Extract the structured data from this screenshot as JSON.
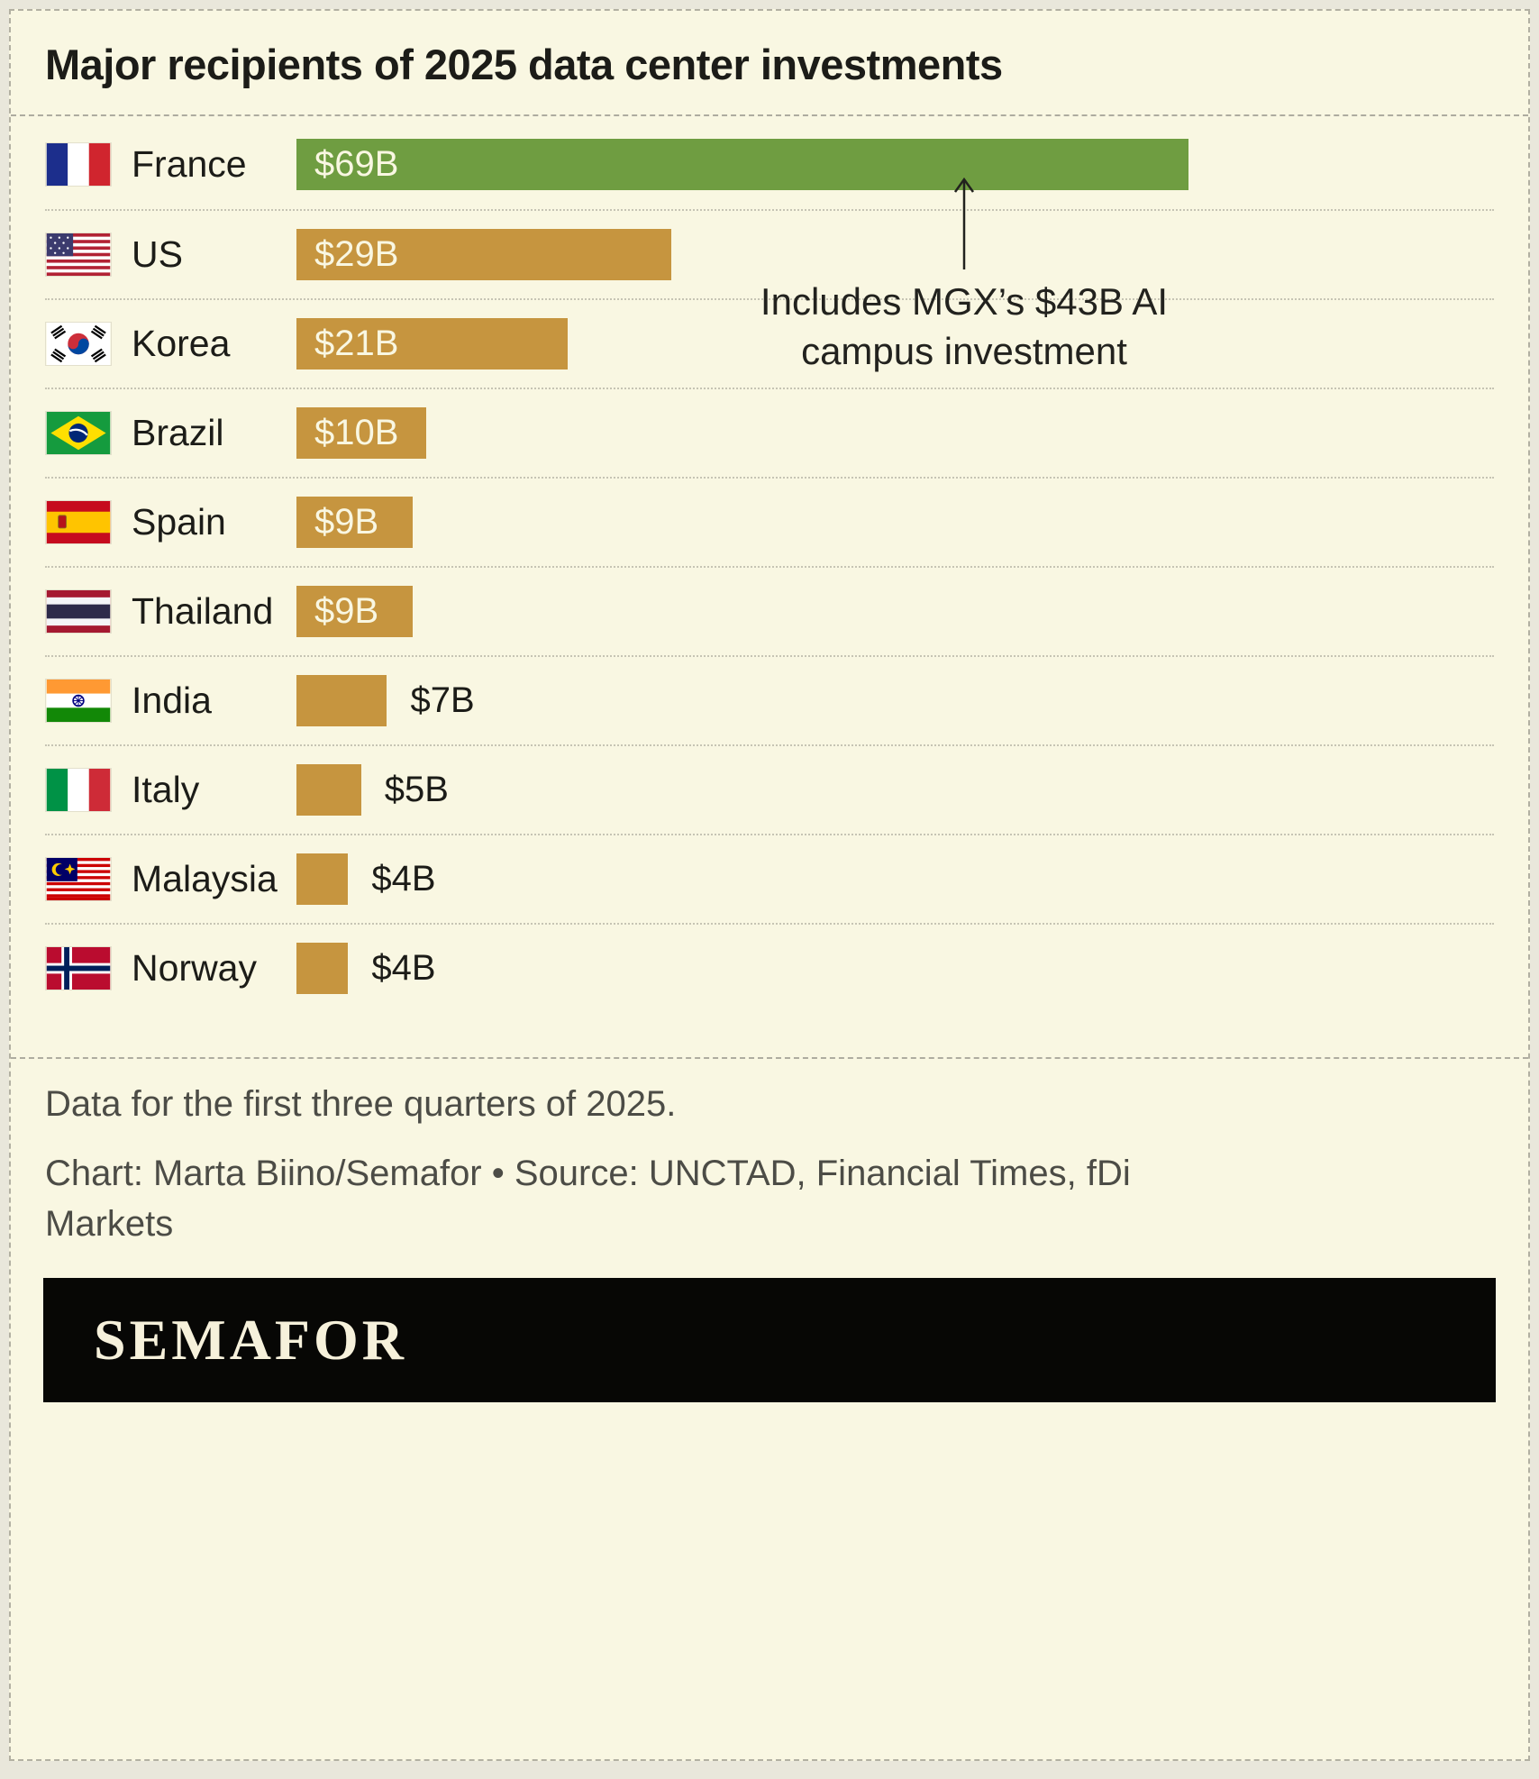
{
  "title": "Major recipients of 2025 data center investments",
  "chart_data": {
    "type": "bar",
    "orientation": "horizontal",
    "unit": "USD billions",
    "xlim": [
      0,
      69
    ],
    "grid": false,
    "bar_color": "#c6953f",
    "highlight_color": "#6f9d41",
    "categories": [
      "France",
      "US",
      "Korea",
      "Brazil",
      "Spain",
      "Thailand",
      "India",
      "Italy",
      "Malaysia",
      "Norway"
    ],
    "values": [
      69,
      29,
      21,
      10,
      9,
      9,
      7,
      5,
      4,
      4
    ],
    "rows": [
      {
        "country": "France",
        "value": 69,
        "label": "$69B",
        "flag": "france-flag-icon",
        "highlight": true
      },
      {
        "country": "US",
        "value": 29,
        "label": "$29B",
        "flag": "us-flag-icon",
        "highlight": false
      },
      {
        "country": "Korea",
        "value": 21,
        "label": "$21B",
        "flag": "south-korea-flag-icon",
        "highlight": false
      },
      {
        "country": "Brazil",
        "value": 10,
        "label": "$10B",
        "flag": "brazil-flag-icon",
        "highlight": false
      },
      {
        "country": "Spain",
        "value": 9,
        "label": "$9B",
        "flag": "spain-flag-icon",
        "highlight": false
      },
      {
        "country": "Thailand",
        "value": 9,
        "label": "$9B",
        "flag": "thailand-flag-icon",
        "highlight": false
      },
      {
        "country": "India",
        "value": 7,
        "label": "$7B",
        "flag": "india-flag-icon",
        "highlight": false
      },
      {
        "country": "Italy",
        "value": 5,
        "label": "$5B",
        "flag": "italy-flag-icon",
        "highlight": false
      },
      {
        "country": "Malaysia",
        "value": 4,
        "label": "$4B",
        "flag": "malaysia-flag-icon",
        "highlight": false
      },
      {
        "country": "Norway",
        "value": 4,
        "label": "$4B",
        "flag": "norway-flag-icon",
        "highlight": false
      }
    ],
    "annotation": {
      "text": "Includes MGX’s $43B AI campus investment",
      "target": "France"
    }
  },
  "footer": {
    "note": "Data for the first three quarters of 2025.",
    "credit": "Chart: Marta Biino/Semafor • Source: UNCTAD, Financial Times, fDi Markets"
  },
  "logo": {
    "text": "SEMAFOR"
  }
}
